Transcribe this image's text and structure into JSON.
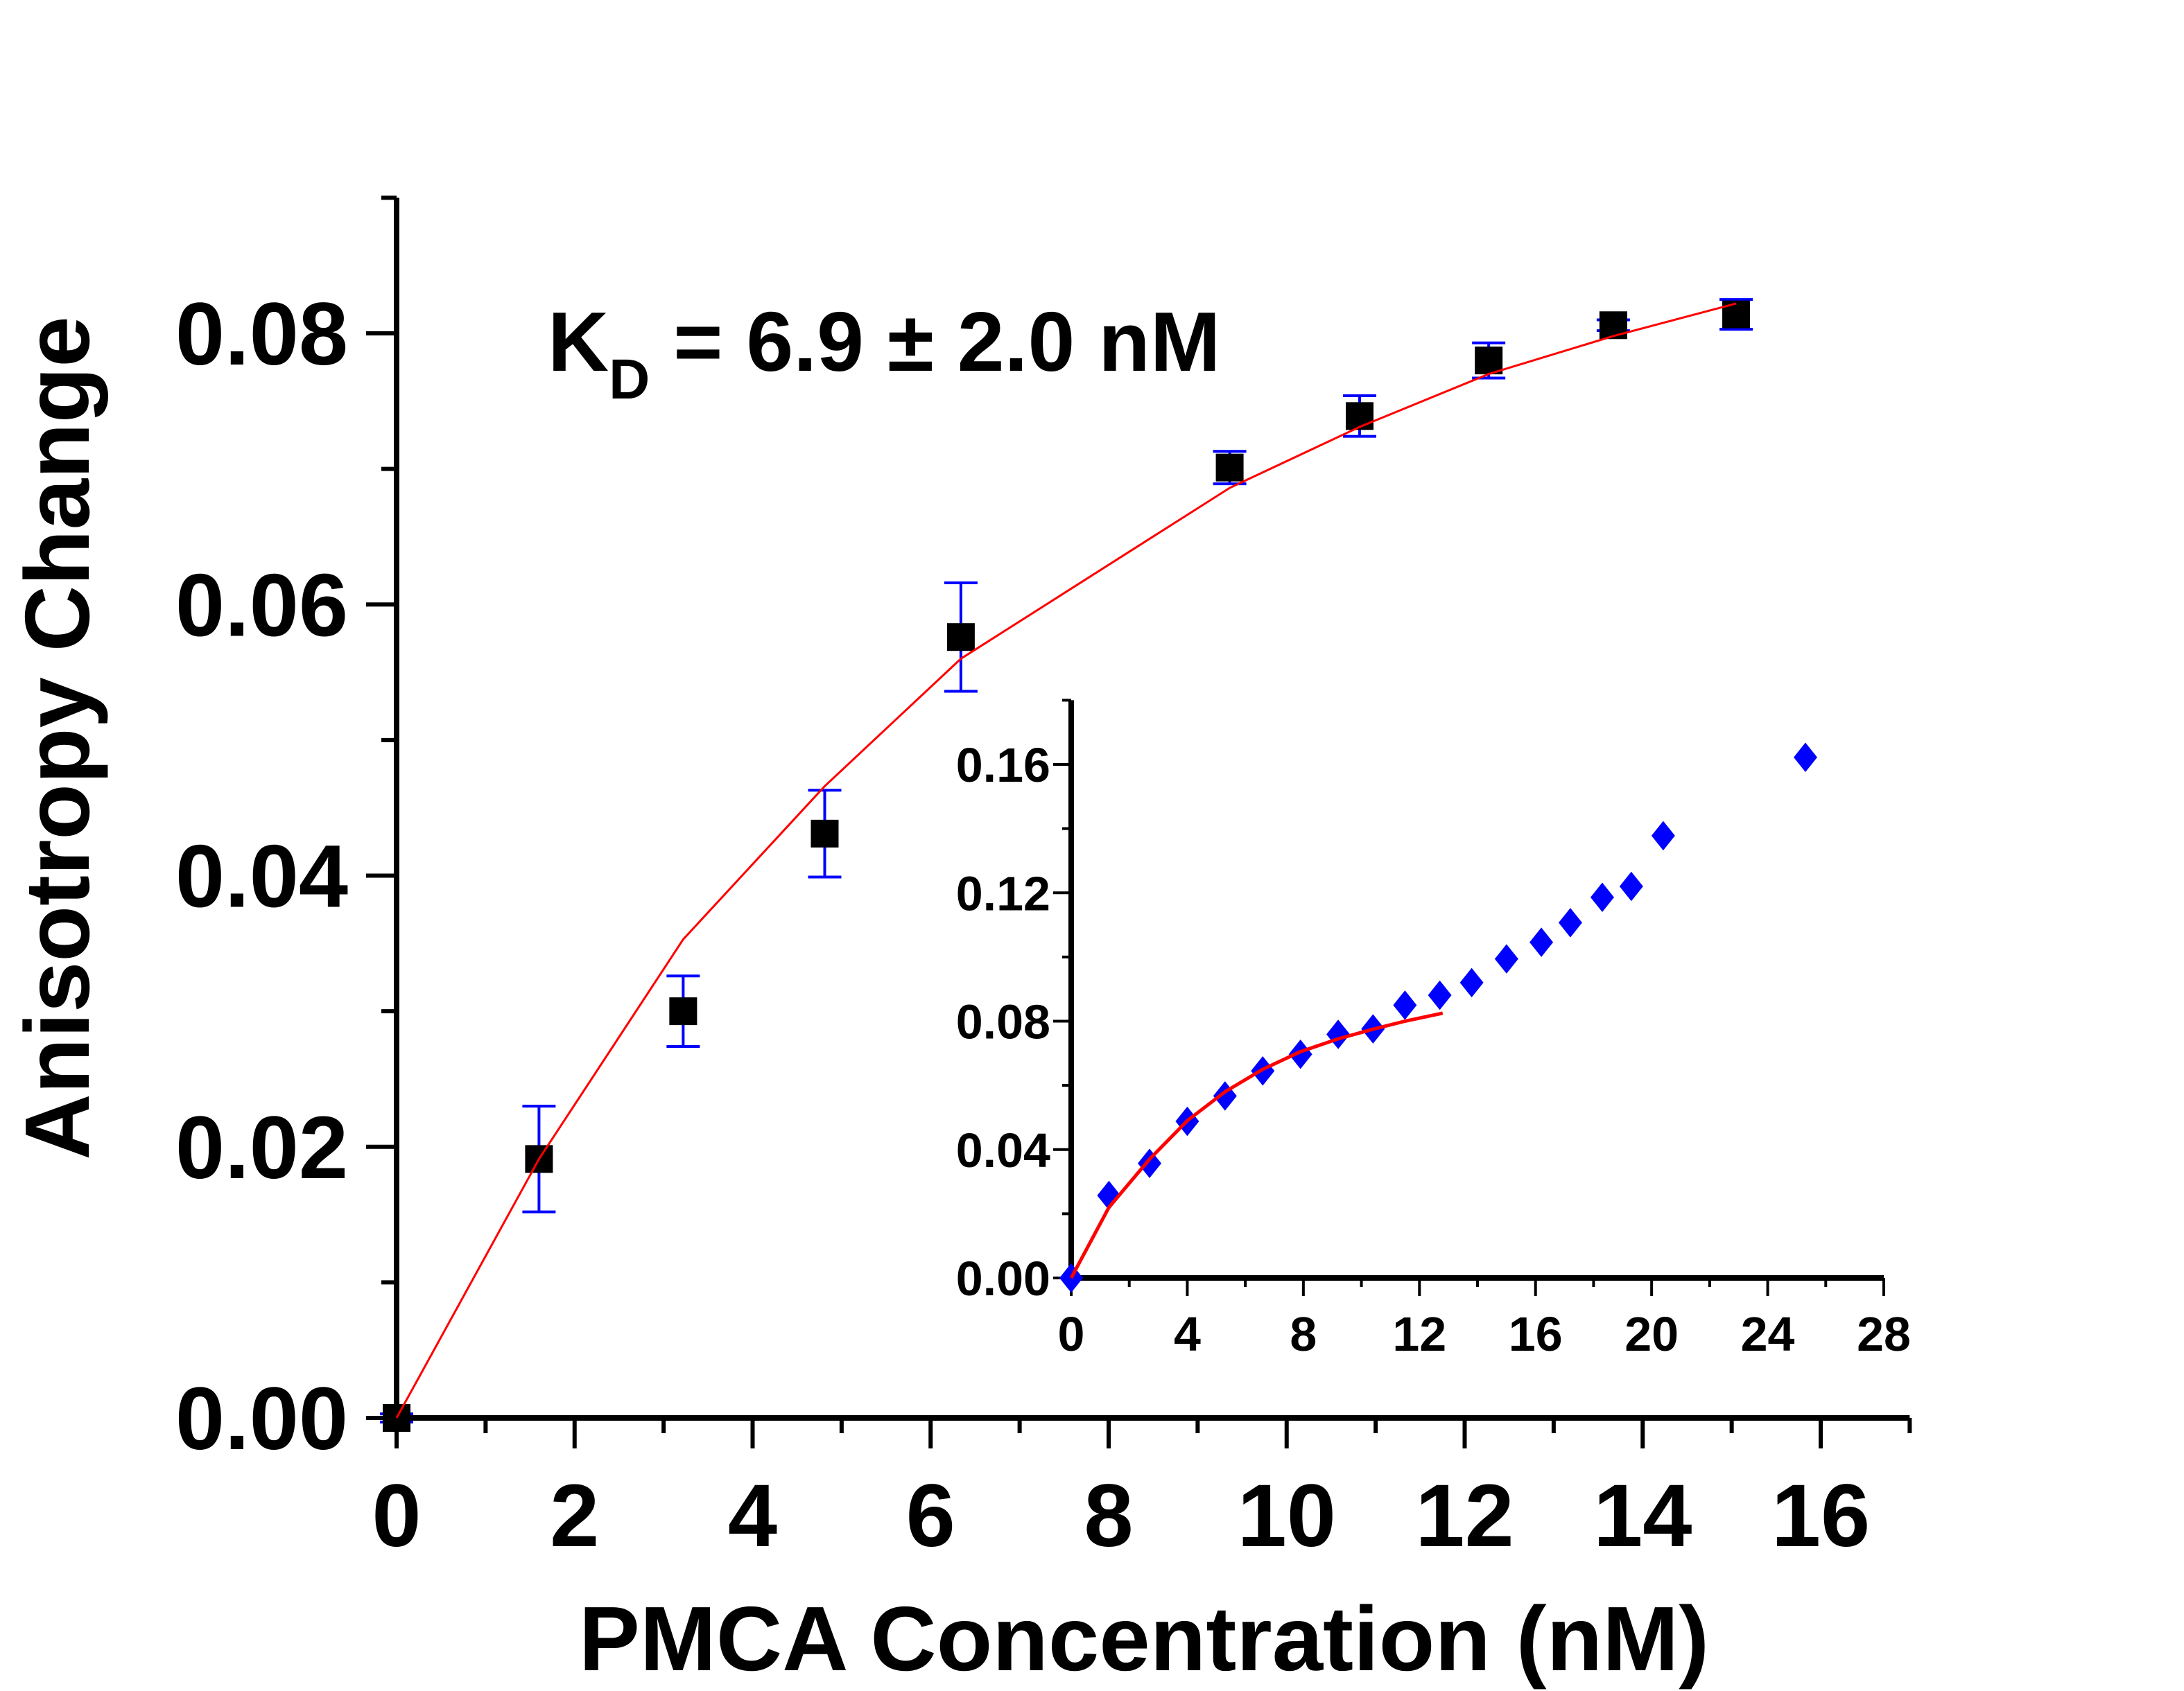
{
  "chart_data": [
    {
      "id": "main",
      "type": "scatter",
      "title": "",
      "xlabel": "PMCA Concentration (nM)",
      "ylabel": "Anisotropy Change",
      "xlim": [
        0,
        17
      ],
      "ylim": [
        0,
        0.09
      ],
      "xticks": [
        0,
        2,
        4,
        6,
        8,
        10,
        12,
        14,
        16
      ],
      "xtick_labels": [
        "0",
        "2",
        "4",
        "6",
        "8",
        "10",
        "12",
        "14",
        "16"
      ],
      "yticks": [
        0,
        0.02,
        0.04,
        0.06,
        0.08
      ],
      "ytick_labels": [
        "0.00",
        "0.02",
        "0.04",
        "0.06",
        "0.08"
      ],
      "grid": false,
      "annotation": {
        "main": "K",
        "sub": "D",
        "rest": " = 6.9 ± 2.0 nM"
      },
      "series": [
        {
          "name": "data",
          "marker": "square",
          "color": "#000000",
          "errorbar_color": "#0000ff",
          "x": [
            0,
            1.6,
            3.22,
            4.81,
            6.34,
            9.36,
            10.82,
            12.27,
            13.67,
            15.05
          ],
          "y": [
            0,
            0.0191,
            0.03,
            0.0431,
            0.0576,
            0.0701,
            0.0739,
            0.078,
            0.0806,
            0.0814
          ],
          "yerr": [
            0.0003,
            0.0039,
            0.0026,
            0.0032,
            0.004,
            0.0012,
            0.0015,
            0.0013,
            0.0004,
            0.0011
          ]
        },
        {
          "name": "fit",
          "type": "line",
          "color": "#ff0000",
          "x": [
            0,
            1.6,
            3.22,
            4.81,
            6.34,
            9.36,
            10.82,
            12.27,
            13.67,
            15.05
          ],
          "y": [
            0,
            0.0191,
            0.0353,
            0.0466,
            0.056,
            0.0686,
            0.0731,
            0.077,
            0.0798,
            0.0822
          ]
        }
      ]
    },
    {
      "id": "inset",
      "type": "scatter",
      "title": "",
      "xlabel": "",
      "ylabel": "",
      "xlim": [
        0,
        28
      ],
      "ylim": [
        0,
        0.18
      ],
      "xticks": [
        0,
        4,
        8,
        12,
        16,
        20,
        24,
        28
      ],
      "xtick_labels": [
        "0",
        "4",
        "8",
        "12",
        "16",
        "20",
        "24",
        "28"
      ],
      "yticks": [
        0,
        0.04,
        0.08,
        0.12,
        0.16
      ],
      "ytick_labels": [
        "0.00",
        "0.04",
        "0.08",
        "0.12",
        "0.16"
      ],
      "grid": false,
      "series": [
        {
          "name": "data",
          "marker": "diamond",
          "color": "#0000ff",
          "x": [
            0,
            1.3,
            2.7,
            4.0,
            5.3,
            6.6,
            7.9,
            9.2,
            10.4,
            11.5,
            12.7,
            13.8,
            15.0,
            16.2,
            17.2,
            18.3,
            19.3,
            20.4,
            25.3
          ],
          "y": [
            0,
            0.0257,
            0.0357,
            0.0488,
            0.0567,
            0.0645,
            0.0697,
            0.0759,
            0.0776,
            0.085,
            0.0881,
            0.092,
            0.0994,
            0.1046,
            0.1107,
            0.1186,
            0.122,
            0.1378,
            0.1622
          ]
        },
        {
          "name": "fit",
          "type": "line",
          "color": "#ff0000",
          "x": [
            0,
            1.3,
            2.7,
            4.0,
            5.3,
            6.6,
            7.9,
            9.2,
            10.4,
            11.5,
            12.8
          ],
          "y": [
            0,
            0.022,
            0.037,
            0.049,
            0.058,
            0.065,
            0.0705,
            0.0745,
            0.0775,
            0.08,
            0.0825
          ]
        }
      ]
    }
  ]
}
